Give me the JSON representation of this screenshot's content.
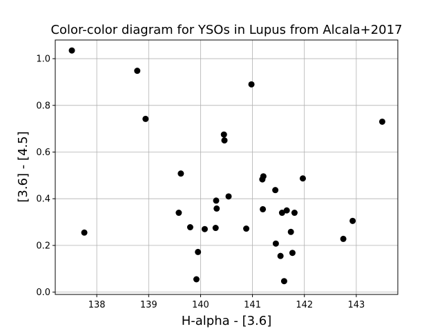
{
  "chart_data": {
    "type": "scatter",
    "title": "Color-color diagram for YSOs in Lupus from Alcala+2017",
    "xlabel": "H-alpha - [3.6]",
    "ylabel": "[3.6] - [4.5]",
    "xlim": [
      137.2,
      143.8
    ],
    "ylim": [
      -0.01,
      1.08
    ],
    "xticks": [
      138,
      139,
      140,
      141,
      142,
      143
    ],
    "yticks": [
      0.0,
      0.2,
      0.4,
      0.6,
      0.8,
      1.0
    ],
    "xtick_labels": [
      "138",
      "139",
      "140",
      "141",
      "142",
      "143"
    ],
    "ytick_labels": [
      "0.0",
      "0.2",
      "0.4",
      "0.6",
      "0.8",
      "1.0"
    ],
    "grid": true,
    "marker_color": "#000000",
    "points": [
      {
        "x": 137.52,
        "y": 1.035
      },
      {
        "x": 137.76,
        "y": 0.255
      },
      {
        "x": 138.78,
        "y": 0.948
      },
      {
        "x": 138.94,
        "y": 0.742
      },
      {
        "x": 139.58,
        "y": 0.34
      },
      {
        "x": 139.62,
        "y": 0.508
      },
      {
        "x": 139.8,
        "y": 0.278
      },
      {
        "x": 139.92,
        "y": 0.055
      },
      {
        "x": 139.95,
        "y": 0.172
      },
      {
        "x": 140.08,
        "y": 0.27
      },
      {
        "x": 140.29,
        "y": 0.275
      },
      {
        "x": 140.3,
        "y": 0.392
      },
      {
        "x": 140.31,
        "y": 0.358
      },
      {
        "x": 140.45,
        "y": 0.675
      },
      {
        "x": 140.46,
        "y": 0.65
      },
      {
        "x": 140.54,
        "y": 0.41
      },
      {
        "x": 140.88,
        "y": 0.272
      },
      {
        "x": 140.98,
        "y": 0.89
      },
      {
        "x": 141.19,
        "y": 0.483
      },
      {
        "x": 141.21,
        "y": 0.496
      },
      {
        "x": 141.2,
        "y": 0.355
      },
      {
        "x": 141.44,
        "y": 0.437
      },
      {
        "x": 141.45,
        "y": 0.208
      },
      {
        "x": 141.54,
        "y": 0.155
      },
      {
        "x": 141.57,
        "y": 0.34
      },
      {
        "x": 141.61,
        "y": 0.047
      },
      {
        "x": 141.66,
        "y": 0.35
      },
      {
        "x": 141.74,
        "y": 0.258
      },
      {
        "x": 141.77,
        "y": 0.168
      },
      {
        "x": 141.81,
        "y": 0.34
      },
      {
        "x": 141.97,
        "y": 0.487
      },
      {
        "x": 142.75,
        "y": 0.228
      },
      {
        "x": 142.93,
        "y": 0.305
      },
      {
        "x": 143.5,
        "y": 0.73
      }
    ]
  }
}
